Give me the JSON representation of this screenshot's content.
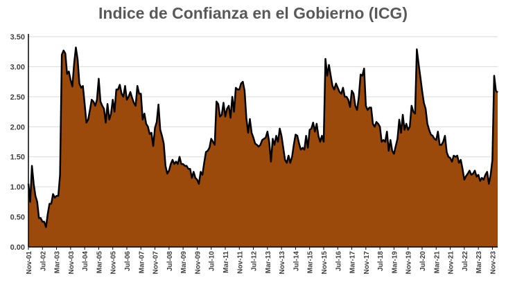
{
  "chart_data": {
    "type": "area",
    "title": "Indice de Confianza en el Gobierno (ICG)",
    "xlabel": "",
    "ylabel": "",
    "ylim": [
      0,
      3.5
    ],
    "y_ticks": [
      "0.00",
      "0.50",
      "1.00",
      "1.50",
      "2.00",
      "2.50",
      "3.00",
      "3.50"
    ],
    "x_ticks": [
      "Nov-01",
      "Jul-02",
      "Mar-03",
      "Nov-03",
      "Jul-04",
      "Mar-05",
      "Nov-05",
      "Jul-06",
      "Mar-07",
      "Nov-07",
      "Jul-08",
      "Mar-09",
      "Nov-09",
      "Jul-10",
      "Mar-11",
      "Nov-11",
      "Jul-12",
      "Mar-13",
      "Nov-13",
      "Jul-14",
      "Mar-15",
      "Nov-15",
      "Jul-16",
      "Mar-17",
      "Nov-17",
      "Jul-18",
      "Mar-19",
      "Nov-19",
      "Jul-20",
      "Mar-21",
      "Nov-21",
      "Jul-22",
      "Mar-23",
      "Nov-23"
    ],
    "grid": true,
    "fill_color": "#9C4A0C",
    "line_color": "#000000",
    "series": [
      {
        "name": "",
        "x_start": "Nov-01",
        "frequency": "monthly",
        "values": [
          1.05,
          0.75,
          1.35,
          1.05,
          0.85,
          0.75,
          0.48,
          0.48,
          0.42,
          0.42,
          0.33,
          0.55,
          0.72,
          0.72,
          0.88,
          0.82,
          0.85,
          0.85,
          1.2,
          3.2,
          3.27,
          3.22,
          2.88,
          2.92,
          2.78,
          2.67,
          3.05,
          3.32,
          3.12,
          2.72,
          2.65,
          2.68,
          2.38,
          2.07,
          2.12,
          2.28,
          2.45,
          2.42,
          2.35,
          2.45,
          2.8,
          2.42,
          2.35,
          2.3,
          2.07,
          2.38,
          2.12,
          2.22,
          2.45,
          2.25,
          2.62,
          2.62,
          2.7,
          2.55,
          2.5,
          2.68,
          2.45,
          2.5,
          2.58,
          2.48,
          2.4,
          2.35,
          2.68,
          2.55,
          2.55,
          2.12,
          2.22,
          2.05,
          2.0,
          1.88,
          1.9,
          1.68,
          1.98,
          2.08,
          2.37,
          1.95,
          1.85,
          1.72,
          1.35,
          1.22,
          1.27,
          1.38,
          1.45,
          1.38,
          1.42,
          1.38,
          1.5,
          1.38,
          1.38,
          1.35,
          1.35,
          1.3,
          1.3,
          1.15,
          1.25,
          1.15,
          1.12,
          1.05,
          1.25,
          1.2,
          1.4,
          1.58,
          1.6,
          1.65,
          1.8,
          1.75,
          1.7,
          2.42,
          2.38,
          2.17,
          2.2,
          2.4,
          2.17,
          2.3,
          2.35,
          2.15,
          2.5,
          2.25,
          2.65,
          2.62,
          2.62,
          2.72,
          2.75,
          2.6,
          2.15,
          1.9,
          2.13,
          1.9,
          1.82,
          1.72,
          1.7,
          1.67,
          1.7,
          1.78,
          1.8,
          1.82,
          1.92,
          1.75,
          1.42,
          1.8,
          1.7,
          1.85,
          1.75,
          1.97,
          1.85,
          1.65,
          1.45,
          1.4,
          1.52,
          1.4,
          1.5,
          1.7,
          1.87,
          1.85,
          1.72,
          1.62,
          1.65,
          1.62,
          1.85,
          1.65,
          1.95,
          1.97,
          2.07,
          1.92,
          2.05,
          1.85,
          1.75,
          1.85,
          1.75,
          3.13,
          2.85,
          3.03,
          2.85,
          2.68,
          2.62,
          2.72,
          2.65,
          2.58,
          2.55,
          2.65,
          2.5,
          2.5,
          2.45,
          2.33,
          2.6,
          2.55,
          2.35,
          2.28,
          2.5,
          2.87,
          2.85,
          2.97,
          2.35,
          2.28,
          2.32,
          2.32,
          2.05,
          2.0,
          2.08,
          2.05,
          2.0,
          1.75,
          1.78,
          1.75,
          1.92,
          1.6,
          1.78,
          1.6,
          1.55,
          1.68,
          1.8,
          2.12,
          1.9,
          2.2,
          1.95,
          2.05,
          1.95,
          2.0,
          2.35,
          2.25,
          2.22,
          3.29,
          3.05,
          2.83,
          2.6,
          2.4,
          2.3,
          2.05,
          1.95,
          1.87,
          1.85,
          1.8,
          1.78,
          1.92,
          1.7,
          1.7,
          1.75,
          1.85,
          1.58,
          1.5,
          1.48,
          1.42,
          1.52,
          1.5,
          1.52,
          1.4,
          1.45,
          1.3,
          1.12,
          1.18,
          1.22,
          1.27,
          1.2,
          1.22,
          1.27,
          1.17,
          1.2,
          1.1,
          1.15,
          1.12,
          1.2,
          1.25,
          1.05,
          1.2,
          1.45,
          2.85,
          2.6,
          2.57
        ]
      }
    ]
  }
}
